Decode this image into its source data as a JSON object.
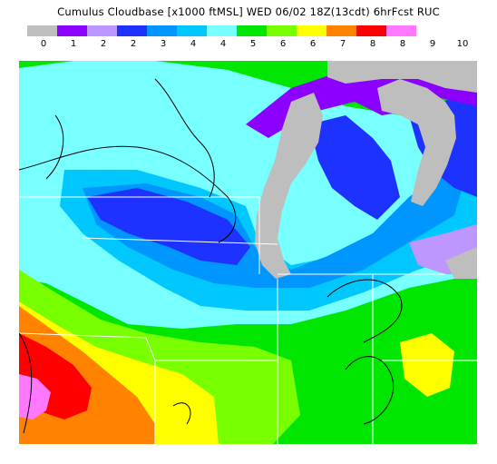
{
  "title": "Cumulus Cloudbase [x1000 ftMSL]  WED 06/02 18Z(13cdt) 6hrFcst RUC",
  "legend": {
    "colors": [
      "#bebebe",
      "#8c00ff",
      "#be96ff",
      "#1e32ff",
      "#0096ff",
      "#00c8ff",
      "#78ffff",
      "#00e600",
      "#78ff00",
      "#ffff00",
      "#ff8200",
      "#ff0000",
      "#ff78ff"
    ],
    "labels": [
      "0",
      "1",
      "2",
      "2",
      "3",
      "4",
      "4",
      "5",
      "6",
      "6",
      "7",
      "8",
      "8",
      "9",
      "10"
    ]
  },
  "map": {
    "water_color": "#bebebe",
    "border_color": "#ffffff",
    "contour_color": "#000000"
  }
}
